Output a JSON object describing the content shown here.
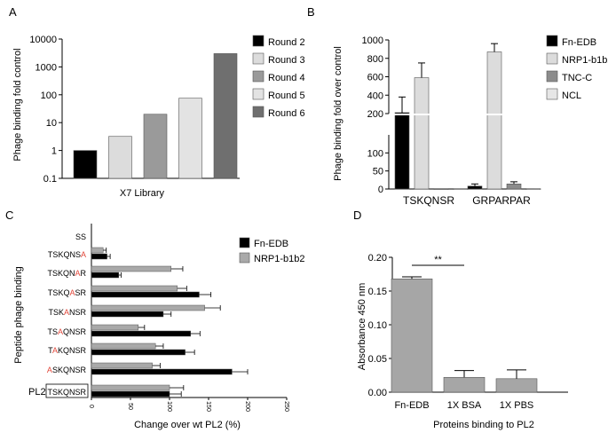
{
  "figure": {
    "description_free": true
  },
  "colors": {
    "black": "#000000",
    "light_gray": "#d9d9d9",
    "mid_gray": "#999999",
    "dark_gray": "#6f6f6f",
    "very_light_gray": "#e6e6e6",
    "fn_edb": "#000000",
    "nrp1": "#a9a9a9",
    "mutation_red": "#e2483b",
    "panel_d_bar": "#a6a6a6"
  },
  "chart_data": [
    {
      "panel": "A",
      "type": "bar",
      "scale": "log",
      "title": "",
      "xlabel": "X7 Library",
      "ylabel": "Phage binding fold control",
      "ylim": [
        0.1,
        10000
      ],
      "yticks": [
        "0.1",
        "1",
        "10",
        "100",
        "1000",
        "10000"
      ],
      "categories": [
        "Round 2",
        "Round 3",
        "Round 4",
        "Round 5",
        "Round 6"
      ],
      "values": [
        1,
        3.2,
        20,
        75,
        3000
      ],
      "colors": [
        "#000000",
        "#dcdcdc",
        "#9a9a9a",
        "#e3e3e3",
        "#6f6f6f"
      ],
      "legend": [
        "Round 2",
        "Round 3",
        "Round 4",
        "Round 5",
        "Round 6"
      ],
      "legend_position": "right"
    },
    {
      "panel": "B",
      "type": "bar",
      "scale": "broken-axis",
      "xlabel": "",
      "ylabel": "Phage binding fold over control",
      "yticks_lower": [
        "0",
        "50",
        "100"
      ],
      "yticks_upper": [
        "200",
        "400",
        "600",
        "800",
        "1000"
      ],
      "break_at": [
        150,
        200
      ],
      "categories": [
        "TSKQNSR",
        "GRPARPAR"
      ],
      "series": [
        {
          "name": "Fn-EDB",
          "color": "#000000",
          "values": [
            210,
            8
          ],
          "errors": [
            170,
            6
          ]
        },
        {
          "name": "NRP1-b1b2",
          "color": "#dcdcdc",
          "values": [
            590,
            870
          ],
          "errors": [
            160,
            90
          ]
        },
        {
          "name": "TNC-C",
          "color": "#8c8c8c",
          "values": [
            1,
            14
          ],
          "errors": [
            0.5,
            6
          ]
        },
        {
          "name": "NCL",
          "color": "#e6e6e6",
          "values": [
            1,
            1
          ],
          "errors": [
            0.5,
            0.5
          ]
        }
      ],
      "legend_position": "right"
    },
    {
      "panel": "C",
      "type": "bar",
      "orientation": "horizontal",
      "xlabel": "Change over wt PL2 (%)",
      "ylabel": "Peptide phage binding",
      "xlim": [
        0,
        250
      ],
      "xticks": [
        "0",
        "50",
        "100",
        "150",
        "200",
        "250"
      ],
      "boxed_label": "PL2",
      "categories": [
        "SS",
        "TSKQNSA",
        "TSKQNAR",
        "TSKQASR",
        "TSKANSR",
        "TSAQNSR",
        "TAKQNSR",
        "ASKQNSR",
        "TSKQNSR"
      ],
      "mutated_index": [
        null,
        6,
        5,
        4,
        3,
        2,
        1,
        0,
        null
      ],
      "series": [
        {
          "name": "NRP1-b1b2",
          "color": "#a9a9a9",
          "values": [
            0,
            15,
            102,
            110,
            145,
            60,
            82,
            78,
            100
          ],
          "errors": [
            0,
            4,
            15,
            12,
            20,
            8,
            10,
            10,
            18
          ]
        },
        {
          "name": "Fn-EDB",
          "color": "#000000",
          "values": [
            0,
            20,
            35,
            138,
            92,
            127,
            120,
            180,
            100
          ],
          "errors": [
            0,
            4,
            3,
            15,
            10,
            12,
            12,
            20,
            15
          ]
        }
      ],
      "legend_position": "top-right"
    },
    {
      "panel": "D",
      "type": "bar",
      "xlabel": "Proteins binding to PL2",
      "ylabel": "Absorbance 450 nm",
      "ylim": [
        0,
        0.2
      ],
      "yticks": [
        "0.00",
        "0.05",
        "0.10",
        "0.15",
        "0.20"
      ],
      "categories": [
        "Fn-EDB",
        "1X BSA",
        "1X PBS"
      ],
      "values": [
        0.168,
        0.022,
        0.02
      ],
      "errors": [
        0.003,
        0.01,
        0.013
      ],
      "significance": {
        "from": 0,
        "to": 1,
        "label": "**"
      }
    }
  ],
  "panel_letters": [
    "A",
    "B",
    "C",
    "D"
  ]
}
